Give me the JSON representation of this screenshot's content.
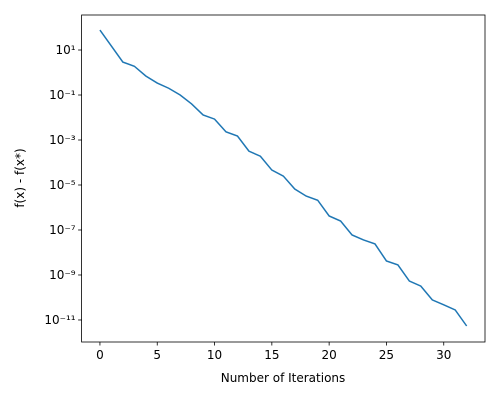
{
  "chart_data": {
    "type": "line",
    "xlabel": "Number of Iterations",
    "ylabel": "f(x) - f(x*)",
    "x": [
      0,
      1,
      2,
      3,
      4,
      5,
      6,
      7,
      8,
      9,
      10,
      11,
      12,
      13,
      14,
      15,
      16,
      17,
      18,
      19,
      20,
      21,
      22,
      23,
      24,
      25,
      26,
      27,
      28,
      29,
      30,
      31,
      32
    ],
    "series": [
      {
        "color": "#1f77b4",
        "values": [
          77,
          15,
          2.9,
          1.9,
          0.7,
          0.34,
          0.2,
          0.1,
          0.04,
          0.013,
          0.0085,
          0.0023,
          0.0015,
          0.00032,
          0.00019,
          4.6e-05,
          2.5e-05,
          6.6e-06,
          3.2e-06,
          2.1e-06,
          4.2e-07,
          2.5e-07,
          6e-08,
          3.6e-08,
          2.4e-08,
          4.2e-09,
          2.8e-09,
          5.4e-10,
          3.2e-10,
          7.8e-11,
          4.7e-11,
          2.8e-11,
          5.4e-12
        ]
      }
    ],
    "xlim": [
      -1.6,
      33.6
    ],
    "xticks": [
      0,
      5,
      10,
      15,
      20,
      25,
      30
    ],
    "ylim": [
      1.05e-12,
      360
    ],
    "yscale": "log",
    "yticks": [
      {
        "value": 10,
        "label": "10¹"
      },
      {
        "value": 0.1,
        "label": "10⁻¹"
      },
      {
        "value": 0.001,
        "label": "10⁻³"
      },
      {
        "value": 1e-05,
        "label": "10⁻⁵"
      },
      {
        "value": 1e-07,
        "label": "10⁻⁷"
      },
      {
        "value": 1e-09,
        "label": "10⁻⁹"
      },
      {
        "value": 1e-11,
        "label": "10⁻¹¹"
      }
    ]
  }
}
